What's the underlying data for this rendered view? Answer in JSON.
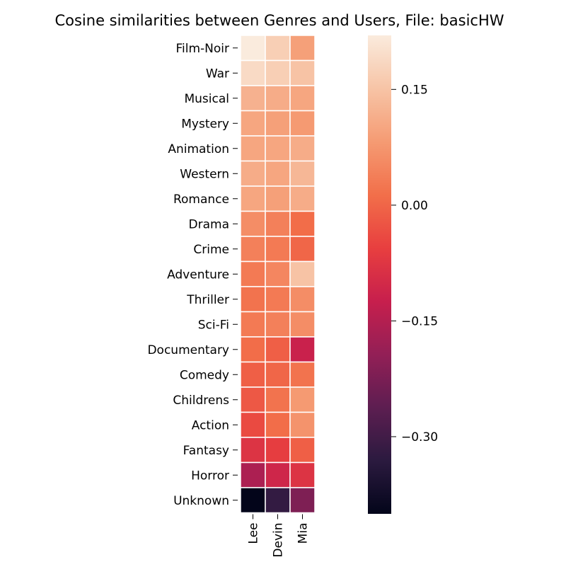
{
  "chart_data": {
    "type": "heatmap",
    "title": "Cosine similarities between Genres and Users, File: basicHW",
    "xlabel": "",
    "ylabel": "",
    "columns": [
      "Lee",
      "Devin",
      "Mia"
    ],
    "rows": [
      "Film-Noir",
      "War",
      "Musical",
      "Mystery",
      "Animation",
      "Western",
      "Romance",
      "Drama",
      "Crime",
      "Adventure",
      "Thriller",
      "Sci-Fi",
      "Documentary",
      "Comedy",
      "Childrens",
      "Action",
      "Fantasy",
      "Horror",
      "Unknown"
    ],
    "values": [
      [
        0.22,
        0.17,
        0.09
      ],
      [
        0.19,
        0.17,
        0.15
      ],
      [
        0.12,
        0.11,
        0.1
      ],
      [
        0.1,
        0.09,
        0.08
      ],
      [
        0.1,
        0.1,
        0.11
      ],
      [
        0.11,
        0.1,
        0.13
      ],
      [
        0.1,
        0.09,
        0.11
      ],
      [
        0.06,
        0.04,
        0.01
      ],
      [
        0.04,
        0.03,
        0.0
      ],
      [
        0.03,
        0.05,
        0.15
      ],
      [
        0.02,
        0.03,
        0.06
      ],
      [
        0.03,
        0.04,
        0.06
      ],
      [
        0.01,
        -0.01,
        -0.12
      ],
      [
        -0.01,
        0.0,
        0.02
      ],
      [
        -0.02,
        0.02,
        0.08
      ],
      [
        -0.04,
        0.01,
        0.07
      ],
      [
        -0.08,
        -0.06,
        -0.01
      ],
      [
        -0.16,
        -0.11,
        -0.08
      ],
      [
        -0.4,
        -0.32,
        -0.22
      ]
    ],
    "colorbar": {
      "ticks": [
        0.15,
        0.0,
        -0.15,
        -0.3
      ],
      "tick_labels": [
        "0.15",
        "0.00",
        "−0.15",
        "−0.30"
      ],
      "range": [
        -0.4,
        0.22
      ]
    },
    "colormap": "rocket",
    "colormap_stops": [
      "#03051a",
      "#2b1a3f",
      "#5d1e51",
      "#931f56",
      "#c71f4d",
      "#e83f3f",
      "#f26f4a",
      "#f59b73",
      "#f7c4a6",
      "#faebdd"
    ],
    "cell_separator_color": "#ffffff",
    "grid": false
  }
}
